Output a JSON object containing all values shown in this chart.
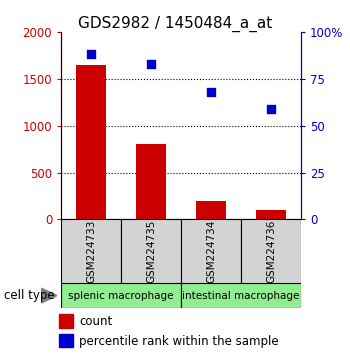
{
  "title": "GDS2982 / 1450484_a_at",
  "samples": [
    "GSM224733",
    "GSM224735",
    "GSM224734",
    "GSM224736"
  ],
  "bar_values": [
    1650,
    800,
    200,
    100
  ],
  "scatter_values": [
    88,
    83,
    68,
    59
  ],
  "bar_color": "#cc0000",
  "scatter_color": "#0000cc",
  "left_ylim": [
    0,
    2000
  ],
  "right_ylim": [
    0,
    100
  ],
  "left_yticks": [
    0,
    500,
    1000,
    1500,
    2000
  ],
  "right_yticks": [
    0,
    25,
    50,
    75,
    100
  ],
  "left_ytick_labels": [
    "0",
    "500",
    "1000",
    "1500",
    "2000"
  ],
  "right_ytick_labels": [
    "0",
    "25",
    "50",
    "75",
    "100%"
  ],
  "cell_groups": [
    {
      "label": "splenic macrophage",
      "indices": [
        0,
        1
      ],
      "color": "#90ee90"
    },
    {
      "label": "intestinal macrophage",
      "indices": [
        2,
        3
      ],
      "color": "#90ee90"
    }
  ],
  "cell_type_label": "cell type",
  "legend_count_label": "count",
  "legend_percentile_label": "percentile rank within the sample",
  "sample_box_color": "#d3d3d3",
  "bar_width": 0.5,
  "scatter_size": 40,
  "title_fontsize": 11,
  "tick_fontsize": 8.5,
  "sample_fontsize": 7.5,
  "cell_fontsize": 7.5,
  "legend_fontsize": 8.5
}
